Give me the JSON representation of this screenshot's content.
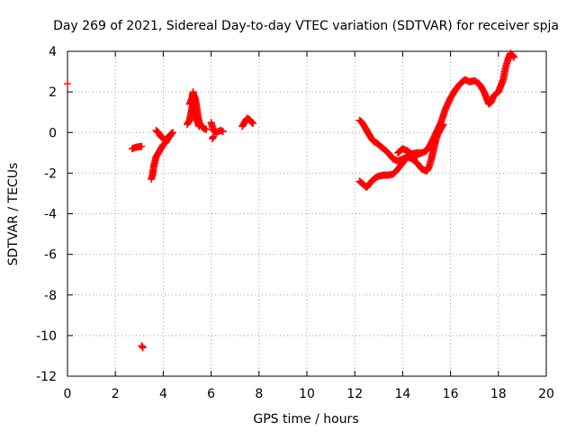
{
  "chart_data": {
    "type": "scatter",
    "title": "Day 269 of 2021, Sidereal Day-to-day VTEC variation (SDTVAR) for receiver spja",
    "xlabel": "GPS time / hours",
    "ylabel": "SDTVAR / TECUs",
    "xlim": [
      0,
      20
    ],
    "ylim": [
      -12,
      4
    ],
    "xticks": [
      0,
      2,
      4,
      6,
      8,
      10,
      12,
      14,
      16,
      18,
      20
    ],
    "yticks": [
      -12,
      -10,
      -8,
      -6,
      -4,
      -2,
      0,
      2,
      4
    ],
    "grid": true,
    "marker": "+",
    "series_color": "#ff0000",
    "segments": [
      [
        [
          0.0,
          2.4
        ]
      ],
      [
        [
          2.7,
          -0.8
        ],
        [
          2.8,
          -0.75
        ],
        [
          2.9,
          -0.72
        ],
        [
          3.0,
          -0.7
        ],
        [
          3.1,
          -0.68
        ]
      ],
      [
        [
          3.1,
          -10.5
        ],
        [
          3.15,
          -10.6
        ]
      ],
      [
        [
          3.5,
          -2.3
        ],
        [
          3.55,
          -2.1
        ],
        [
          3.6,
          -1.7
        ],
        [
          3.7,
          -1.2
        ],
        [
          3.8,
          -1.0
        ],
        [
          3.9,
          -0.8
        ],
        [
          4.0,
          -0.6
        ],
        [
          4.1,
          -0.5
        ],
        [
          4.2,
          -0.3
        ],
        [
          4.3,
          -0.1
        ],
        [
          4.4,
          0.0
        ]
      ],
      [
        [
          3.7,
          0.1
        ],
        [
          3.8,
          0.0
        ],
        [
          3.9,
          -0.2
        ],
        [
          4.0,
          -0.3
        ],
        [
          4.1,
          -0.35
        ],
        [
          4.2,
          -0.25
        ],
        [
          4.3,
          -0.15
        ]
      ],
      [
        [
          5.0,
          0.4
        ],
        [
          5.1,
          0.6
        ],
        [
          5.15,
          0.9
        ],
        [
          5.2,
          1.2
        ],
        [
          5.25,
          1.5
        ],
        [
          5.3,
          1.8
        ],
        [
          5.35,
          1.6
        ],
        [
          5.4,
          1.2
        ],
        [
          5.45,
          0.8
        ],
        [
          5.5,
          0.5
        ],
        [
          5.6,
          0.3
        ],
        [
          5.7,
          0.2
        ],
        [
          5.8,
          0.15
        ]
      ],
      [
        [
          5.1,
          1.4
        ],
        [
          5.2,
          1.7
        ],
        [
          5.25,
          2.0
        ],
        [
          5.3,
          1.5
        ],
        [
          5.35,
          1.0
        ],
        [
          5.4,
          0.6
        ],
        [
          5.5,
          0.3
        ]
      ],
      [
        [
          6.0,
          0.5
        ],
        [
          6.05,
          0.3
        ],
        [
          6.1,
          0.1
        ],
        [
          6.2,
          0.0
        ],
        [
          6.3,
          0.05
        ],
        [
          6.4,
          0.1
        ],
        [
          6.5,
          0.05
        ]
      ],
      [
        [
          6.1,
          -0.2
        ],
        [
          6.05,
          -0.3
        ]
      ],
      [
        [
          7.3,
          0.3
        ],
        [
          7.4,
          0.5
        ],
        [
          7.5,
          0.7
        ],
        [
          7.6,
          0.65
        ],
        [
          7.7,
          0.5
        ],
        [
          7.75,
          0.45
        ]
      ],
      [
        [
          12.2,
          -2.4
        ],
        [
          12.3,
          -2.5
        ],
        [
          12.4,
          -2.6
        ],
        [
          12.5,
          -2.7
        ],
        [
          12.6,
          -2.55
        ],
        [
          12.7,
          -2.4
        ],
        [
          12.8,
          -2.3
        ],
        [
          12.9,
          -2.2
        ],
        [
          13.0,
          -2.15
        ],
        [
          13.2,
          -2.1
        ],
        [
          13.4,
          -2.1
        ],
        [
          13.6,
          -2.05
        ],
        [
          13.8,
          -1.8
        ],
        [
          14.0,
          -1.5
        ],
        [
          14.2,
          -1.2
        ],
        [
          14.4,
          -1.05
        ],
        [
          14.6,
          -1.0
        ],
        [
          14.8,
          -1.0
        ],
        [
          15.0,
          -0.9
        ],
        [
          15.2,
          -0.5
        ],
        [
          15.4,
          0.0
        ],
        [
          15.6,
          0.5
        ],
        [
          15.8,
          1.2
        ],
        [
          16.0,
          1.7
        ],
        [
          16.2,
          2.1
        ],
        [
          16.4,
          2.4
        ],
        [
          16.6,
          2.6
        ],
        [
          16.8,
          2.5
        ],
        [
          17.0,
          2.55
        ],
        [
          17.2,
          2.4
        ],
        [
          17.4,
          2.0
        ],
        [
          17.5,
          1.7
        ],
        [
          17.6,
          1.4
        ],
        [
          17.7,
          1.5
        ],
        [
          17.8,
          1.8
        ],
        [
          17.9,
          1.9
        ],
        [
          18.0,
          2.0
        ],
        [
          18.1,
          2.3
        ],
        [
          18.2,
          2.6
        ],
        [
          18.3,
          3.2
        ],
        [
          18.4,
          3.6
        ],
        [
          18.5,
          3.9
        ],
        [
          18.6,
          3.8
        ],
        [
          18.65,
          3.7
        ]
      ],
      [
        [
          12.2,
          0.6
        ],
        [
          12.3,
          0.5
        ],
        [
          12.4,
          0.3
        ],
        [
          12.5,
          0.1
        ],
        [
          12.6,
          -0.1
        ],
        [
          12.7,
          -0.3
        ],
        [
          12.8,
          -0.45
        ],
        [
          12.9,
          -0.5
        ],
        [
          13.0,
          -0.6
        ],
        [
          13.2,
          -0.8
        ],
        [
          13.4,
          -1.0
        ],
        [
          13.6,
          -1.3
        ],
        [
          13.8,
          -1.4
        ],
        [
          14.0,
          -1.3
        ],
        [
          14.2,
          -1.2
        ],
        [
          14.4,
          -1.3
        ],
        [
          14.6,
          -1.5
        ],
        [
          14.8,
          -1.8
        ],
        [
          15.0,
          -1.9
        ],
        [
          15.1,
          -1.7
        ],
        [
          15.2,
          -1.3
        ],
        [
          15.3,
          -0.8
        ],
        [
          15.4,
          -0.3
        ],
        [
          15.5,
          0.0
        ],
        [
          15.6,
          0.2
        ],
        [
          15.7,
          0.4
        ]
      ],
      [
        [
          13.8,
          -1.0
        ],
        [
          14.0,
          -0.8
        ],
        [
          14.2,
          -0.9
        ],
        [
          14.4,
          -1.1
        ],
        [
          14.6,
          -1.2
        ]
      ]
    ]
  }
}
